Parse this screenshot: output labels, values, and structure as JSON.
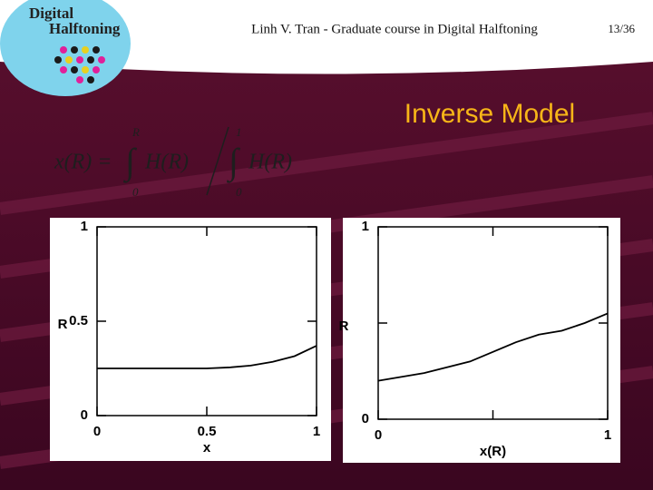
{
  "header": {
    "logo_line1": "Digital",
    "logo_line2": "Halftoning",
    "course": "Linh V. Tran  -  Graduate course in Digital Halftoning",
    "page": "13/36"
  },
  "title": "Inverse Model",
  "formula": {
    "lhs": "x(R) =",
    "int1_upper": "R",
    "int1_lower": "0",
    "integrand1": "H(R)",
    "int2_upper": "1",
    "int2_lower": "0",
    "integrand2": "H(R)"
  },
  "chart_data": [
    {
      "type": "line",
      "x_label": "x",
      "y_label": "R",
      "color": "#000000",
      "x": [
        0,
        0.1,
        0.2,
        0.3,
        0.4,
        0.5,
        0.6,
        0.7,
        0.8,
        0.9,
        1
      ],
      "values": [
        0.25,
        0.25,
        0.25,
        0.25,
        0.25,
        0.25,
        0.255,
        0.265,
        0.285,
        0.315,
        0.37
      ],
      "xlim": [
        0,
        1
      ],
      "ylim": [
        0,
        1
      ],
      "xticks": [
        0,
        0.5,
        1
      ],
      "yticks": [
        0,
        0.5,
        1
      ]
    },
    {
      "type": "line",
      "x_label": "x(R)",
      "y_label": "R",
      "color": "#000000",
      "x": [
        0,
        0.1,
        0.2,
        0.3,
        0.4,
        0.5,
        0.6,
        0.7,
        0.8,
        0.9,
        1
      ],
      "values": [
        0.2,
        0.22,
        0.24,
        0.27,
        0.3,
        0.35,
        0.4,
        0.44,
        0.46,
        0.5,
        0.55
      ],
      "xlim": [
        0,
        1
      ],
      "ylim": [
        0,
        1
      ],
      "xticks": [
        0,
        1
      ],
      "yticks": [
        0,
        1
      ]
    }
  ]
}
